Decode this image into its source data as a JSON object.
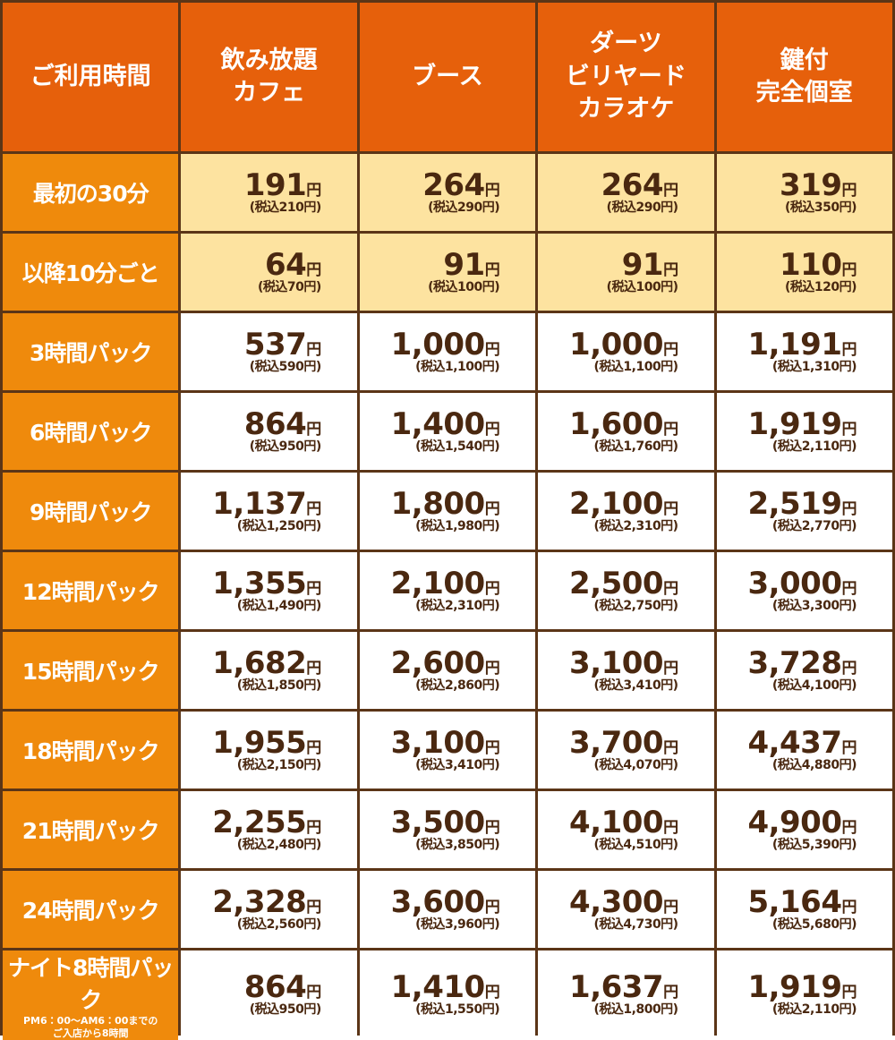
{
  "unit": "円",
  "header": [
    [
      "ご利用時間"
    ],
    [
      "飲み放題",
      "カフェ"
    ],
    [
      "ブース"
    ],
    [
      "ダーツ",
      "ビリヤード",
      "カラオケ"
    ],
    [
      "鍵付",
      "完全個室"
    ]
  ],
  "rows": [
    {
      "label": "最初の30分",
      "cells": [
        [
          "191",
          "(税込210円)"
        ],
        [
          "264",
          "(税込290円)"
        ],
        [
          "264",
          "(税込290円)"
        ],
        [
          "319",
          "(税込350円)"
        ]
      ]
    },
    {
      "label": "以降10分ごと",
      "cells": [
        [
          "64",
          "(税込70円)"
        ],
        [
          "91",
          "(税込100円)"
        ],
        [
          "91",
          "(税込100円)"
        ],
        [
          "110",
          "(税込120円)"
        ]
      ]
    },
    {
      "label": "3時間パック",
      "cells": [
        [
          "537",
          "(税込590円)"
        ],
        [
          "1,000",
          "(税込1,100円)"
        ],
        [
          "1,000",
          "(税込1,100円)"
        ],
        [
          "1,191",
          "(税込1,310円)"
        ]
      ]
    },
    {
      "label": "6時間パック",
      "cells": [
        [
          "864",
          "(税込950円)"
        ],
        [
          "1,400",
          "(税込1,540円)"
        ],
        [
          "1,600",
          "(税込1,760円)"
        ],
        [
          "1,919",
          "(税込2,110円)"
        ]
      ]
    },
    {
      "label": "9時間パック",
      "cells": [
        [
          "1,137",
          "(税込1,250円)"
        ],
        [
          "1,800",
          "(税込1,980円)"
        ],
        [
          "2,100",
          "(税込2,310円)"
        ],
        [
          "2,519",
          "(税込2,770円)"
        ]
      ]
    },
    {
      "label": "12時間パック",
      "cells": [
        [
          "1,355",
          "(税込1,490円)"
        ],
        [
          "2,100",
          "(税込2,310円)"
        ],
        [
          "2,500",
          "(税込2,750円)"
        ],
        [
          "3,000",
          "(税込3,300円)"
        ]
      ]
    },
    {
      "label": "15時間パック",
      "cells": [
        [
          "1,682",
          "(税込1,850円)"
        ],
        [
          "2,600",
          "(税込2,860円)"
        ],
        [
          "3,100",
          "(税込3,410円)"
        ],
        [
          "3,728",
          "(税込4,100円)"
        ]
      ]
    },
    {
      "label": "18時間パック",
      "cells": [
        [
          "1,955",
          "(税込2,150円)"
        ],
        [
          "3,100",
          "(税込3,410円)"
        ],
        [
          "3,700",
          "(税込4,070円)"
        ],
        [
          "4,437",
          "(税込4,880円)"
        ]
      ]
    },
    {
      "label": "21時間パック",
      "cells": [
        [
          "2,255",
          "(税込2,480円)"
        ],
        [
          "3,500",
          "(税込3,850円)"
        ],
        [
          "4,100",
          "(税込4,510円)"
        ],
        [
          "4,900",
          "(税込5,390円)"
        ]
      ]
    },
    {
      "label": "24時間パック",
      "cells": [
        [
          "2,328",
          "(税込2,560円)"
        ],
        [
          "3,600",
          "(税込3,960円)"
        ],
        [
          "4,300",
          "(税込4,730円)"
        ],
        [
          "5,164",
          "(税込5,680円)"
        ]
      ]
    },
    {
      "label": "ナイト8時間パック",
      "note": [
        "PM6：00～AM6：00までの",
        "ご入店から8時間"
      ],
      "cells": [
        [
          "864",
          "(税込950円)"
        ],
        [
          "1,410",
          "(税込1,550円)"
        ],
        [
          "1,637",
          "(税込1,800円)"
        ],
        [
          "1,919",
          "(税込2,110円)"
        ]
      ]
    }
  ]
}
